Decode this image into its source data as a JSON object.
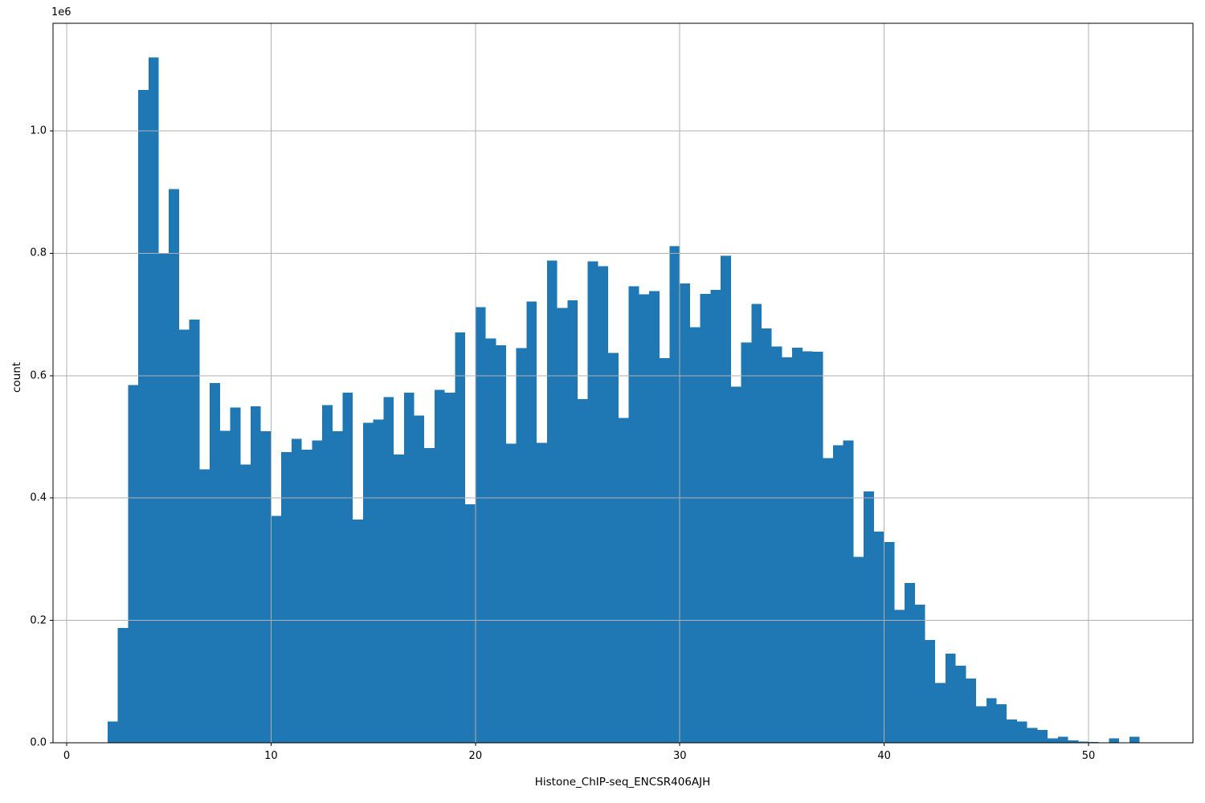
{
  "chart_data": {
    "type": "bar",
    "subtype": "histogram",
    "title": "",
    "xlabel": "Histone_ChIP-seq_ENCSR406AJH",
    "ylabel": "count",
    "y_offset_label": "1e6",
    "bar_color": "#1f77b4",
    "grid_color": "#b0b0b0",
    "spine_color": "#000000",
    "grid": true,
    "legend_position": "none",
    "bin_start": 2.0,
    "bin_width": 0.5,
    "xlim": [
      -0.67,
      55.11
    ],
    "ylim": [
      0,
      1176000
    ],
    "x_ticks": [
      0,
      10,
      20,
      30,
      40,
      50
    ],
    "x_tick_labels": [
      "0",
      "10",
      "20",
      "30",
      "40",
      "50"
    ],
    "y_ticks": [
      0,
      200000,
      400000,
      600000,
      800000,
      1000000
    ],
    "y_tick_labels": [
      "0.0",
      "0.2",
      "0.4",
      "0.6",
      "0.8",
      "1.0"
    ],
    "counts": [
      35000,
      188000,
      585000,
      1067000,
      1120000,
      799000,
      905000,
      675000,
      692000,
      447000,
      588000,
      510000,
      548000,
      455000,
      550000,
      509000,
      371000,
      475000,
      497000,
      479000,
      494000,
      552000,
      509000,
      572000,
      365000,
      523000,
      528000,
      565000,
      471000,
      572000,
      535000,
      482000,
      577000,
      572000,
      671000,
      390000,
      712000,
      661000,
      650000,
      489000,
      645000,
      721000,
      490000,
      788000,
      711000,
      723000,
      562000,
      787000,
      779000,
      637000,
      531000,
      746000,
      733000,
      738000,
      629000,
      812000,
      751000,
      679000,
      734000,
      740000,
      796000,
      582000,
      654000,
      717000,
      677000,
      648000,
      630000,
      646000,
      640000,
      639000,
      465000,
      486000,
      494000,
      304000,
      411000,
      345000,
      328000,
      217000,
      261000,
      226000,
      168000,
      98000,
      146000,
      126000,
      105000,
      60000,
      73000,
      63000,
      38000,
      35000,
      24000,
      21000,
      7000,
      10000,
      4000,
      2000,
      1000,
      0,
      7000,
      0,
      10000
    ]
  }
}
